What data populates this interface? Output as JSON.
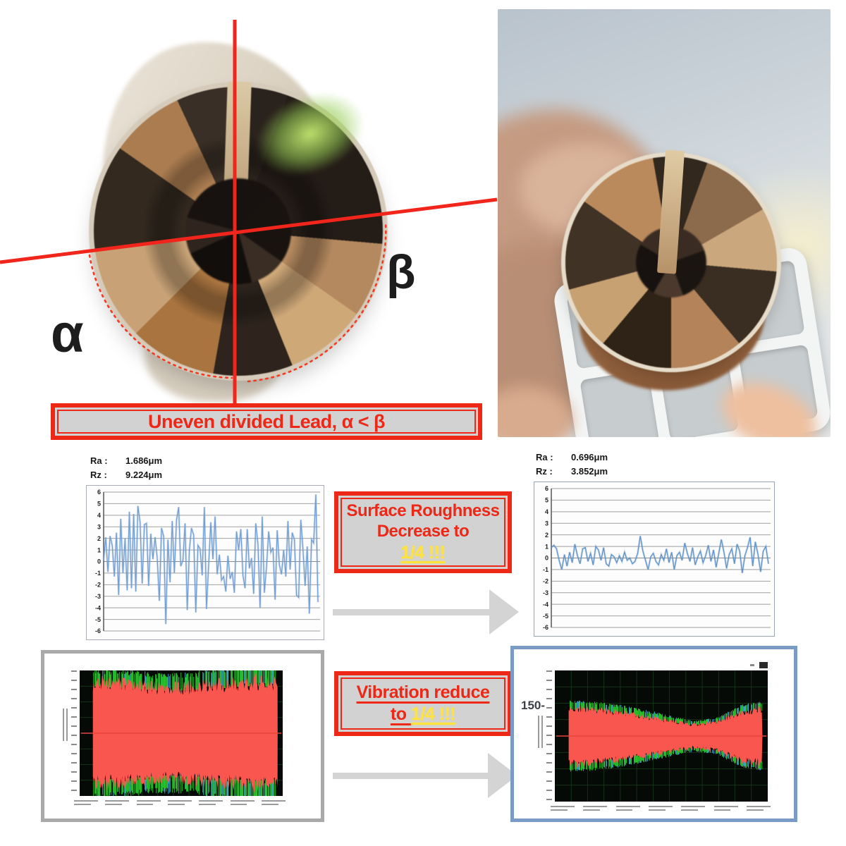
{
  "lead": {
    "alpha": "α",
    "beta": "β",
    "banner": "Uneven divided Lead, α < β"
  },
  "roughness_banner": {
    "line1": "Surface Roughness",
    "line2": "Decrease to",
    "highlight": "1/4 !!!"
  },
  "vibration_banner": {
    "line1": "Vibration reduce",
    "line2_prefix": "to ",
    "highlight": "1/4 !!!"
  },
  "measurements": {
    "left": {
      "ra_label": "Ra :",
      "ra_value": "1.686μm",
      "rz_label": "Rz :",
      "rz_value": "9.224μm"
    },
    "right": {
      "ra_label": "Ra :",
      "ra_value": "0.696μm",
      "rz_label": "Rz :",
      "rz_value": "3.852μm"
    }
  },
  "colors": {
    "accent_red": "#ee2816",
    "banner_bg": "#d2d2d2",
    "highlight_yellow": "#ffe23c",
    "arrow_gray": "#d4d4d4",
    "panel_gray_border": "#a9a9a9",
    "panel_blue_border": "#7a9bc6",
    "trace_blue": "#6f9bd1",
    "vibration_red": "#f8564e"
  },
  "chart_data": [
    {
      "id": "roughness-before",
      "type": "line",
      "title": "",
      "xlabel": "",
      "ylabel": "",
      "ylim": [
        -6,
        6
      ],
      "yticks": [
        6,
        5,
        4,
        3,
        2,
        1,
        0,
        -1,
        -2,
        -3,
        -4,
        -5,
        -6
      ],
      "grid": true,
      "line_color": "#6f9bd1",
      "annotations": {
        "Ra": "1.686μm",
        "Rz": "9.224μm"
      },
      "values": [
        0.1,
        2.1,
        -0.9,
        2.2,
        1.4,
        -1.3,
        2.5,
        -2.9,
        3.7,
        -1.0,
        2.0,
        -2.5,
        4.3,
        -2.3,
        4.1,
        -2.6,
        4.8,
        3.4,
        -1.9,
        3.2,
        3.3,
        -2.1,
        2.4,
        0.2,
        2.1,
        0.3,
        -3.4,
        2.9,
        2.2,
        -5.4,
        1.9,
        -1.8,
        3.5,
        -1.0,
        3.6,
        4.7,
        -0.4,
        0.1,
        3.3,
        -4.2,
        1.0,
        2.9,
        2.3,
        -4.4,
        1.4,
        1.1,
        -1.2,
        4.7,
        -4.1,
        -0.2,
        3.4,
        0.2,
        3.9,
        -1.1,
        0.6,
        -1.6,
        -1.3,
        -2.6,
        0.5,
        -1.5,
        -0.9,
        -2.7,
        2.6,
        1.0,
        2.8,
        -1.2,
        -2.3,
        2.8,
        -0.6,
        0.3,
        -2.8,
        3.3,
        1.5,
        -4.0,
        3.9,
        -2.7,
        -0.5,
        2.6,
        0.8,
        1.2,
        -3.3,
        2.7,
        -0.3,
        -1.1,
        1.0,
        -1.3,
        3.5,
        -0.7,
        2.5,
        1.9,
        -2.9,
        -3.1,
        3.6,
        1.1,
        -2.1,
        1.3,
        -4.5,
        1.9,
        1.6,
        5.8,
        -3.5
      ]
    },
    {
      "id": "roughness-after",
      "type": "line",
      "title": "",
      "xlabel": "",
      "ylabel": "",
      "ylim": [
        -6,
        6
      ],
      "yticks": [
        6,
        5,
        4,
        3,
        2,
        1,
        0,
        -1,
        -2,
        -3,
        -4,
        -5,
        -6
      ],
      "grid": true,
      "line_color": "#5b8ec4",
      "annotations": {
        "Ra": "0.696μm",
        "Rz": "3.852μm"
      },
      "values": [
        0.9,
        1.1,
        0.8,
        -0.2,
        -1.0,
        0.3,
        -0.7,
        0.5,
        -0.4,
        1.2,
        0.2,
        -0.5,
        0.8,
        0.9,
        -0.3,
        0.4,
        -0.6,
        1.0,
        0.7,
        -0.2,
        0.9,
        -0.5,
        -0.7,
        0.3,
        0.1,
        -0.4,
        0.2,
        -0.3,
        0.5,
        -0.2,
        0.0,
        -0.5,
        -0.3,
        0.4,
        1.9,
        0.6,
        -0.2,
        -1.0,
        0.1,
        0.4,
        -0.3,
        -0.6,
        0.3,
        -0.2,
        0.8,
        -0.4,
        0.5,
        -1.0,
        0.2,
        0.5,
        -0.2,
        1.3,
        0.4,
        -0.3,
        0.9,
        -0.6,
        0.1,
        0.6,
        -0.4,
        0.2,
        1.1,
        -0.3,
        0.7,
        -0.8,
        0.4,
        1.6,
        0.5,
        -0.9,
        0.3,
        0.8,
        -0.5,
        1.2,
        0.6,
        -1.3,
        0.2,
        0.9,
        1.8,
        -0.7,
        1.4,
        0.3,
        -1.2,
        0.6,
        1.0,
        -0.5
      ]
    },
    {
      "id": "vibration-before",
      "type": "area",
      "title": "",
      "background": "#060a06",
      "grid_color": "#16421a",
      "signal_color": "#f8564e",
      "fringe_colors": [
        "#26c226",
        "#45b4e4"
      ],
      "active_range": [
        0.065,
        0.975
      ],
      "envelope": [
        [
          0,
          0.93
        ],
        [
          0.18,
          0.9
        ],
        [
          0.38,
          0.84
        ],
        [
          0.55,
          0.86
        ],
        [
          0.72,
          0.9
        ],
        [
          0.88,
          0.95
        ],
        [
          1,
          0.92
        ]
      ],
      "fringe": [
        [
          0,
          0.1
        ],
        [
          0.55,
          0.12
        ],
        [
          0.75,
          0.26
        ],
        [
          1,
          0.3
        ]
      ],
      "seed": 7
    },
    {
      "id": "vibration-after",
      "type": "area",
      "title": "",
      "background": "#060a06",
      "grid_color": "#16421a",
      "signal_color": "#f8564e",
      "fringe_colors": [
        "#26c226",
        "#45b4e4"
      ],
      "active_range": [
        0.065,
        0.975
      ],
      "envelope": [
        [
          0,
          0.5
        ],
        [
          0.12,
          0.48
        ],
        [
          0.3,
          0.4
        ],
        [
          0.5,
          0.28
        ],
        [
          0.65,
          0.2
        ],
        [
          0.78,
          0.26
        ],
        [
          0.9,
          0.44
        ],
        [
          1,
          0.48
        ]
      ],
      "fringe": [
        [
          0,
          0.07
        ],
        [
          0.5,
          0.16
        ],
        [
          1,
          0.07
        ]
      ],
      "seed": 12,
      "axis_callout": "150-"
    }
  ]
}
